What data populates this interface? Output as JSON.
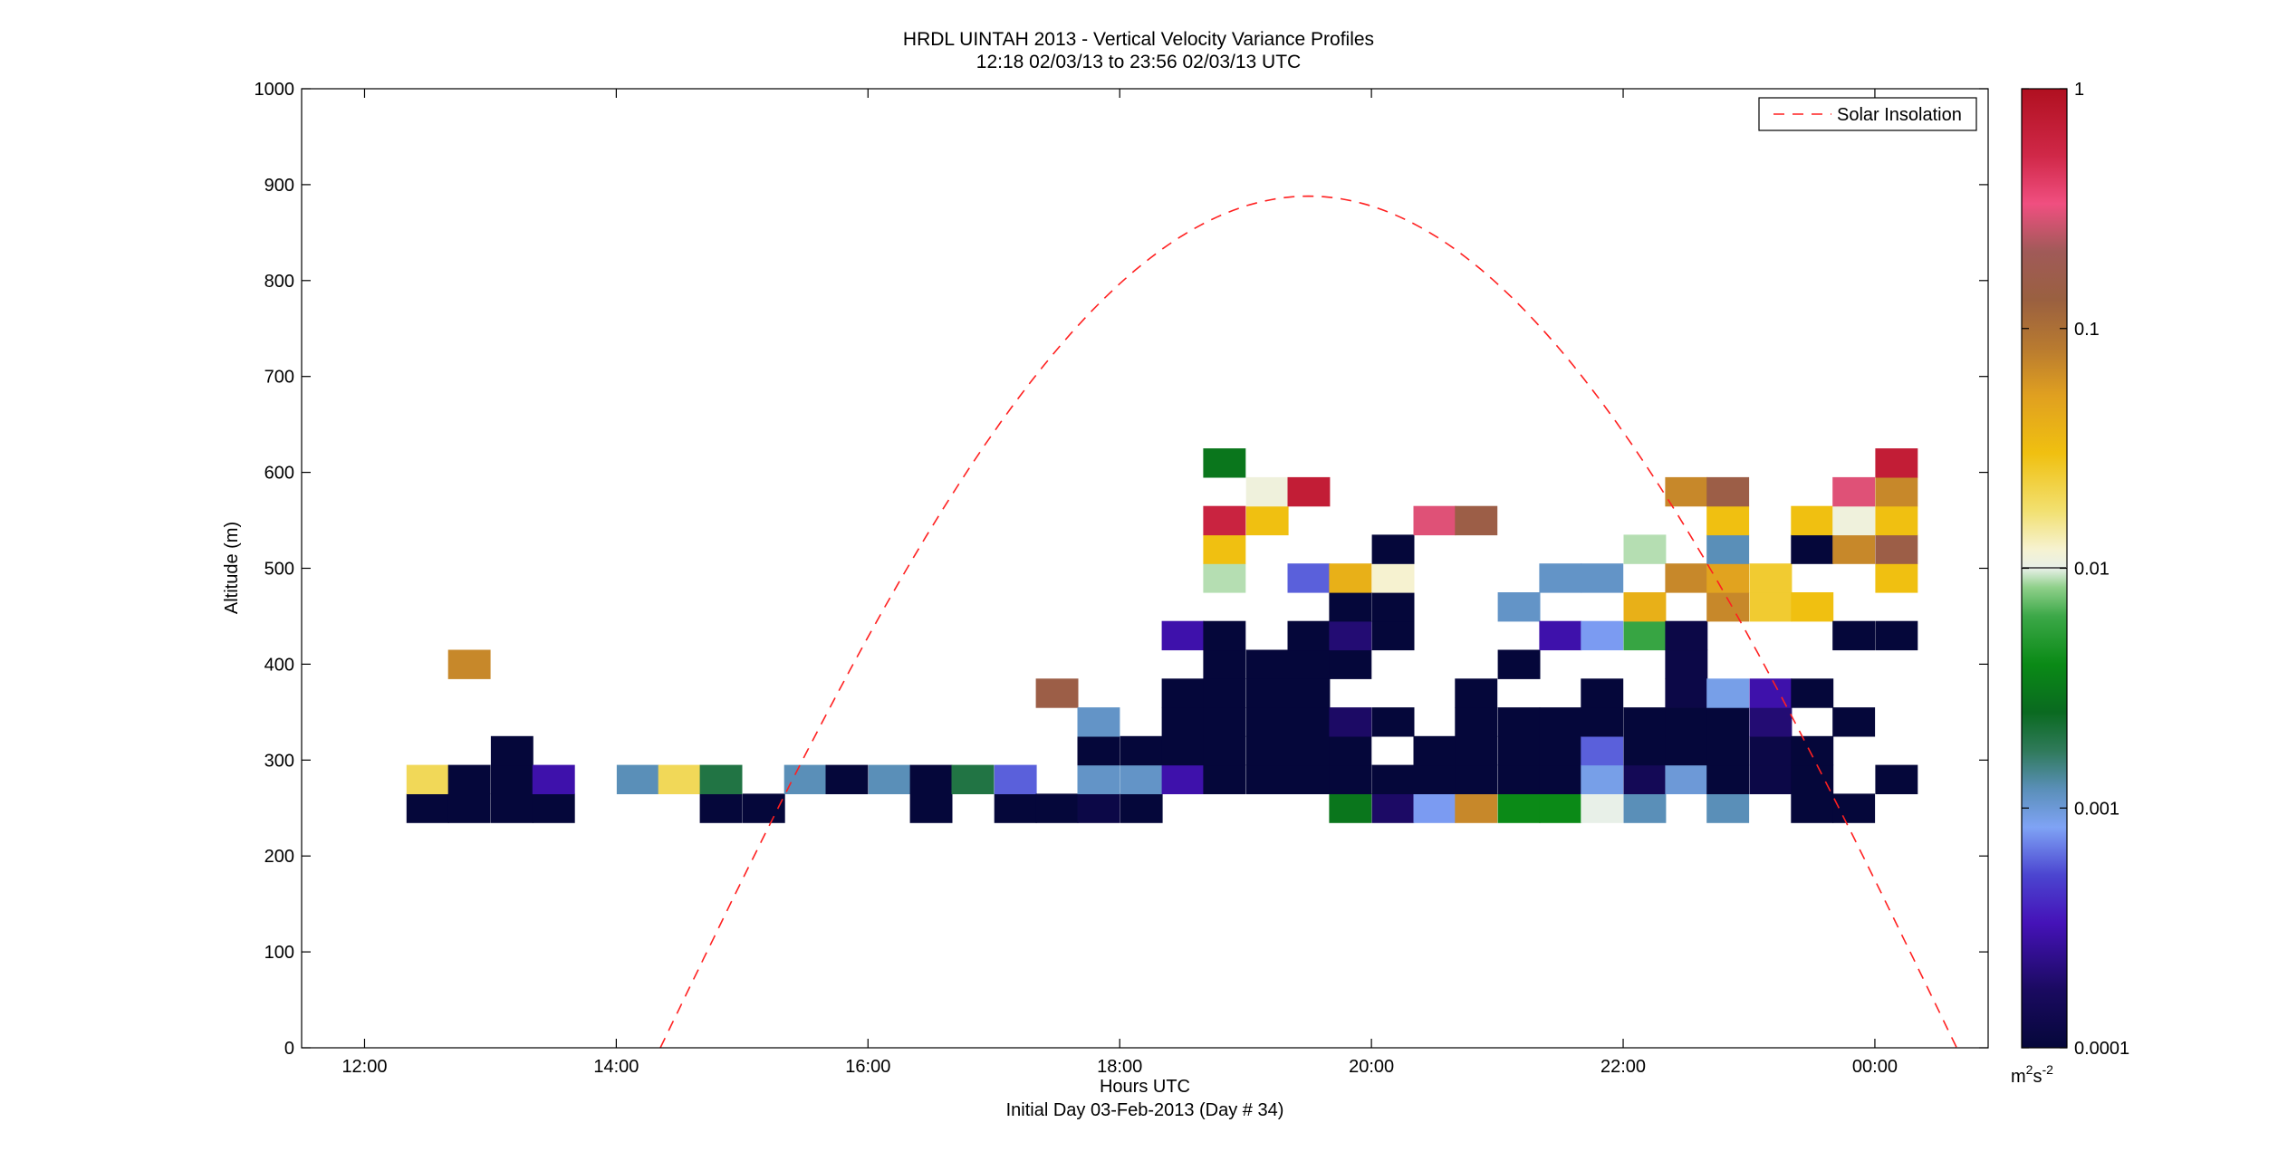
{
  "chart_data": {
    "type": "heatmap",
    "title": "HRDL UINTAH 2013 - Vertical Velocity Variance Profiles",
    "subtitle": "12:18 02/03/13 to 23:56 02/03/13  UTC",
    "xlabel": "Hours UTC",
    "xlabel2": "Initial Day 03-Feb-2013 (Day # 34)",
    "ylabel": "Altitude (m)",
    "x_range_hours": [
      11.5,
      24.9
    ],
    "ylim": [
      0,
      1000
    ],
    "x_ticks": [
      {
        "h": 12,
        "label": "12:00"
      },
      {
        "h": 14,
        "label": "14:00"
      },
      {
        "h": 16,
        "label": "16:00"
      },
      {
        "h": 18,
        "label": "18:00"
      },
      {
        "h": 20,
        "label": "20:00"
      },
      {
        "h": 22,
        "label": "22:00"
      },
      {
        "h": 24,
        "label": "00:00"
      }
    ],
    "y_ticks": [
      {
        "v": 0,
        "label": "0"
      },
      {
        "v": 100,
        "label": "100"
      },
      {
        "v": 200,
        "label": "200"
      },
      {
        "v": 300,
        "label": "300"
      },
      {
        "v": 400,
        "label": "400"
      },
      {
        "v": 500,
        "label": "500"
      },
      {
        "v": 600,
        "label": "600"
      },
      {
        "v": 700,
        "label": "700"
      },
      {
        "v": 800,
        "label": "800"
      },
      {
        "v": 900,
        "label": "900"
      },
      {
        "v": 1000,
        "label": "1000"
      }
    ],
    "colorbar": {
      "scale": "log",
      "range": [
        0.0001,
        1
      ],
      "ticks": [
        {
          "v": 1,
          "label": "1"
        },
        {
          "v": 0.1,
          "label": "0.1"
        },
        {
          "v": 0.01,
          "label": "0.01"
        },
        {
          "v": 0.001,
          "label": "0.001"
        },
        {
          "v": 0.0001,
          "label": "0.0001"
        }
      ],
      "unit_base": "m",
      "unit_sup1": "2",
      "unit_mid": "s",
      "unit_sup2": "-2"
    },
    "legend": {
      "label": "Solar Insolation",
      "position": "top-right",
      "color": "#ff0000",
      "style": "dashed"
    },
    "solar_insolation": {
      "peak_hour": 19.5,
      "half_width_hours": 5.15,
      "peak_altitude": 888
    },
    "cell_height_m": 30,
    "cell_width_hours": 0.333,
    "cells": [
      {
        "t": 12.5,
        "z": 250,
        "v": 0.0001
      },
      {
        "t": 12.5,
        "z": 280,
        "v": 0.02
      },
      {
        "t": 12.83,
        "z": 250,
        "v": 0.0001
      },
      {
        "t": 12.83,
        "z": 280,
        "v": 0.0001
      },
      {
        "t": 12.83,
        "z": 400,
        "v": 0.07
      },
      {
        "t": 13.17,
        "z": 250,
        "v": 0.0001
      },
      {
        "t": 13.17,
        "z": 280,
        "v": 0.0001
      },
      {
        "t": 13.17,
        "z": 310,
        "v": 0.0001
      },
      {
        "t": 13.5,
        "z": 250,
        "v": 0.0001
      },
      {
        "t": 13.5,
        "z": 280,
        "v": 0.0003
      },
      {
        "t": 14.17,
        "z": 280,
        "v": 0.0012
      },
      {
        "t": 14.5,
        "z": 280,
        "v": 0.02
      },
      {
        "t": 14.83,
        "z": 250,
        "v": 0.0001
      },
      {
        "t": 14.83,
        "z": 280,
        "v": 0.002
      },
      {
        "t": 15.17,
        "z": 250,
        "v": 0.0001
      },
      {
        "t": 15.5,
        "z": 280,
        "v": 0.0012
      },
      {
        "t": 15.83,
        "z": 280,
        "v": 0.0001
      },
      {
        "t": 16.17,
        "z": 280,
        "v": 0.0012
      },
      {
        "t": 16.5,
        "z": 250,
        "v": 0.0001
      },
      {
        "t": 16.5,
        "z": 280,
        "v": 0.0001
      },
      {
        "t": 16.83,
        "z": 280,
        "v": 0.002
      },
      {
        "t": 17.17,
        "z": 250,
        "v": 0.0001
      },
      {
        "t": 17.17,
        "z": 280,
        "v": 0.0006
      },
      {
        "t": 17.5,
        "z": 250,
        "v": 0.0001
      },
      {
        "t": 17.5,
        "z": 370,
        "v": 0.15
      },
      {
        "t": 17.83,
        "z": 250,
        "v": 0.00012
      },
      {
        "t": 17.83,
        "z": 280,
        "v": 0.0011
      },
      {
        "t": 17.83,
        "z": 310,
        "v": 0.0001
      },
      {
        "t": 17.83,
        "z": 340,
        "v": 0.0011
      },
      {
        "t": 18.17,
        "z": 250,
        "v": 0.0001
      },
      {
        "t": 18.17,
        "z": 280,
        "v": 0.0011
      },
      {
        "t": 18.17,
        "z": 310,
        "v": 0.0001
      },
      {
        "t": 18.5,
        "z": 280,
        "v": 0.0003
      },
      {
        "t": 18.5,
        "z": 310,
        "v": 0.0001
      },
      {
        "t": 18.5,
        "z": 340,
        "v": 0.0001
      },
      {
        "t": 18.5,
        "z": 370,
        "v": 0.0001
      },
      {
        "t": 18.5,
        "z": 430,
        "v": 0.0003
      },
      {
        "t": 18.83,
        "z": 280,
        "v": 0.0001
      },
      {
        "t": 18.83,
        "z": 310,
        "v": 0.0001
      },
      {
        "t": 18.83,
        "z": 340,
        "v": 0.0001
      },
      {
        "t": 18.83,
        "z": 370,
        "v": 0.0001
      },
      {
        "t": 18.83,
        "z": 400,
        "v": 0.0001
      },
      {
        "t": 18.83,
        "z": 430,
        "v": 0.0001
      },
      {
        "t": 18.83,
        "z": 490,
        "v": 0.009
      },
      {
        "t": 18.83,
        "z": 520,
        "v": 0.03
      },
      {
        "t": 18.83,
        "z": 550,
        "v": 0.6
      },
      {
        "t": 18.83,
        "z": 610,
        "v": 0.003
      },
      {
        "t": 19.17,
        "z": 280,
        "v": 0.0001
      },
      {
        "t": 19.17,
        "z": 310,
        "v": 0.0001
      },
      {
        "t": 19.17,
        "z": 340,
        "v": 0.0001
      },
      {
        "t": 19.17,
        "z": 370,
        "v": 0.0001
      },
      {
        "t": 19.17,
        "z": 400,
        "v": 0.0001
      },
      {
        "t": 19.17,
        "z": 550,
        "v": 0.03
      },
      {
        "t": 19.17,
        "z": 580,
        "v": 0.011
      },
      {
        "t": 19.5,
        "z": 280,
        "v": 0.0001
      },
      {
        "t": 19.5,
        "z": 310,
        "v": 0.0001
      },
      {
        "t": 19.5,
        "z": 340,
        "v": 0.0001
      },
      {
        "t": 19.5,
        "z": 370,
        "v": 0.0001
      },
      {
        "t": 19.5,
        "z": 400,
        "v": 0.0001
      },
      {
        "t": 19.5,
        "z": 430,
        "v": 0.0001
      },
      {
        "t": 19.5,
        "z": 490,
        "v": 0.0006
      },
      {
        "t": 19.5,
        "z": 580,
        "v": 0.7
      },
      {
        "t": 19.83,
        "z": 250,
        "v": 0.003
      },
      {
        "t": 19.83,
        "z": 280,
        "v": 0.0001
      },
      {
        "t": 19.83,
        "z": 310,
        "v": 0.0001
      },
      {
        "t": 19.83,
        "z": 340,
        "v": 0.00018
      },
      {
        "t": 19.83,
        "z": 400,
        "v": 0.0001
      },
      {
        "t": 19.83,
        "z": 430,
        "v": 0.0002
      },
      {
        "t": 19.83,
        "z": 460,
        "v": 0.0001
      },
      {
        "t": 19.83,
        "z": 490,
        "v": 0.04
      },
      {
        "t": 20.17,
        "z": 250,
        "v": 0.00018
      },
      {
        "t": 20.17,
        "z": 280,
        "v": 0.0001
      },
      {
        "t": 20.17,
        "z": 340,
        "v": 0.0001
      },
      {
        "t": 20.17,
        "z": 430,
        "v": 0.0001
      },
      {
        "t": 20.17,
        "z": 460,
        "v": 0.0001
      },
      {
        "t": 20.17,
        "z": 490,
        "v": 0.012
      },
      {
        "t": 20.17,
        "z": 520,
        "v": 0.0001
      },
      {
        "t": 20.5,
        "z": 250,
        "v": 0.0008
      },
      {
        "t": 20.5,
        "z": 280,
        "v": 0.0001
      },
      {
        "t": 20.5,
        "z": 310,
        "v": 0.0001
      },
      {
        "t": 20.5,
        "z": 550,
        "v": 0.3
      },
      {
        "t": 20.83,
        "z": 250,
        "v": 0.07
      },
      {
        "t": 20.83,
        "z": 280,
        "v": 0.0001
      },
      {
        "t": 20.83,
        "z": 310,
        "v": 0.0001
      },
      {
        "t": 20.83,
        "z": 340,
        "v": 0.0001
      },
      {
        "t": 20.83,
        "z": 370,
        "v": 0.0001
      },
      {
        "t": 20.83,
        "z": 550,
        "v": 0.15
      },
      {
        "t": 21.17,
        "z": 250,
        "v": 0.004
      },
      {
        "t": 21.17,
        "z": 280,
        "v": 0.0001
      },
      {
        "t": 21.17,
        "z": 310,
        "v": 0.0001
      },
      {
        "t": 21.17,
        "z": 340,
        "v": 0.0001
      },
      {
        "t": 21.17,
        "z": 400,
        "v": 0.0001
      },
      {
        "t": 21.17,
        "z": 460,
        "v": 0.0011
      },
      {
        "t": 21.5,
        "z": 250,
        "v": 0.004
      },
      {
        "t": 21.5,
        "z": 280,
        "v": 0.0001
      },
      {
        "t": 21.5,
        "z": 310,
        "v": 0.0001
      },
      {
        "t": 21.5,
        "z": 340,
        "v": 0.0001
      },
      {
        "t": 21.5,
        "z": 430,
        "v": 0.0003
      },
      {
        "t": 21.5,
        "z": 490,
        "v": 0.0011
      },
      {
        "t": 21.83,
        "z": 250,
        "v": 0.01
      },
      {
        "t": 21.83,
        "z": 280,
        "v": 0.0009
      },
      {
        "t": 21.83,
        "z": 310,
        "v": 0.0006
      },
      {
        "t": 21.83,
        "z": 340,
        "v": 0.0001
      },
      {
        "t": 21.83,
        "z": 370,
        "v": 0.0001
      },
      {
        "t": 21.83,
        "z": 430,
        "v": 0.0008
      },
      {
        "t": 21.83,
        "z": 490,
        "v": 0.0011
      },
      {
        "t": 22.17,
        "z": 250,
        "v": 0.0012
      },
      {
        "t": 22.17,
        "z": 280,
        "v": 0.00015
      },
      {
        "t": 22.17,
        "z": 310,
        "v": 0.0001
      },
      {
        "t": 22.17,
        "z": 340,
        "v": 0.0001
      },
      {
        "t": 22.17,
        "z": 430,
        "v": 0.006
      },
      {
        "t": 22.17,
        "z": 460,
        "v": 0.04
      },
      {
        "t": 22.17,
        "z": 520,
        "v": 0.009
      },
      {
        "t": 22.5,
        "z": 280,
        "v": 0.001
      },
      {
        "t": 22.5,
        "z": 310,
        "v": 0.0001
      },
      {
        "t": 22.5,
        "z": 340,
        "v": 0.0001
      },
      {
        "t": 22.5,
        "z": 370,
        "v": 0.00012
      },
      {
        "t": 22.5,
        "z": 400,
        "v": 0.00012
      },
      {
        "t": 22.5,
        "z": 430,
        "v": 0.00012
      },
      {
        "t": 22.5,
        "z": 490,
        "v": 0.07
      },
      {
        "t": 22.5,
        "z": 580,
        "v": 0.07
      },
      {
        "t": 22.83,
        "z": 250,
        "v": 0.0012
      },
      {
        "t": 22.83,
        "z": 280,
        "v": 0.0001
      },
      {
        "t": 22.83,
        "z": 310,
        "v": 0.0001
      },
      {
        "t": 22.83,
        "z": 340,
        "v": 0.0001
      },
      {
        "t": 22.83,
        "z": 370,
        "v": 0.0009
      },
      {
        "t": 22.83,
        "z": 460,
        "v": 0.07
      },
      {
        "t": 22.83,
        "z": 490,
        "v": 0.05
      },
      {
        "t": 22.83,
        "z": 520,
        "v": 0.0012
      },
      {
        "t": 22.83,
        "z": 550,
        "v": 0.03
      },
      {
        "t": 22.83,
        "z": 580,
        "v": 0.15
      },
      {
        "t": 23.17,
        "z": 280,
        "v": 0.00012
      },
      {
        "t": 23.17,
        "z": 310,
        "v": 0.00012
      },
      {
        "t": 23.17,
        "z": 340,
        "v": 0.0002
      },
      {
        "t": 23.17,
        "z": 370,
        "v": 0.0003
      },
      {
        "t": 23.17,
        "z": 460,
        "v": 0.025
      },
      {
        "t": 23.17,
        "z": 490,
        "v": 0.025
      },
      {
        "t": 23.5,
        "z": 250,
        "v": 0.0001
      },
      {
        "t": 23.5,
        "z": 280,
        "v": 0.0001
      },
      {
        "t": 23.5,
        "z": 310,
        "v": 0.0001
      },
      {
        "t": 23.5,
        "z": 370,
        "v": 0.0001
      },
      {
        "t": 23.5,
        "z": 460,
        "v": 0.03
      },
      {
        "t": 23.5,
        "z": 520,
        "v": 0.0001
      },
      {
        "t": 23.5,
        "z": 550,
        "v": 0.03
      },
      {
        "t": 23.83,
        "z": 250,
        "v": 0.0001
      },
      {
        "t": 23.83,
        "z": 340,
        "v": 0.0001
      },
      {
        "t": 23.83,
        "z": 430,
        "v": 0.0001
      },
      {
        "t": 23.83,
        "z": 520,
        "v": 0.07
      },
      {
        "t": 23.83,
        "z": 550,
        "v": 0.011
      },
      {
        "t": 23.83,
        "z": 580,
        "v": 0.3
      },
      {
        "t": 24.17,
        "z": 280,
        "v": 0.0001
      },
      {
        "t": 24.17,
        "z": 430,
        "v": 0.0001
      },
      {
        "t": 24.17,
        "z": 490,
        "v": 0.03
      },
      {
        "t": 24.17,
        "z": 520,
        "v": 0.15
      },
      {
        "t": 24.17,
        "z": 550,
        "v": 0.03
      },
      {
        "t": 24.17,
        "z": 580,
        "v": 0.07
      },
      {
        "t": 24.17,
        "z": 610,
        "v": 0.7
      }
    ]
  }
}
